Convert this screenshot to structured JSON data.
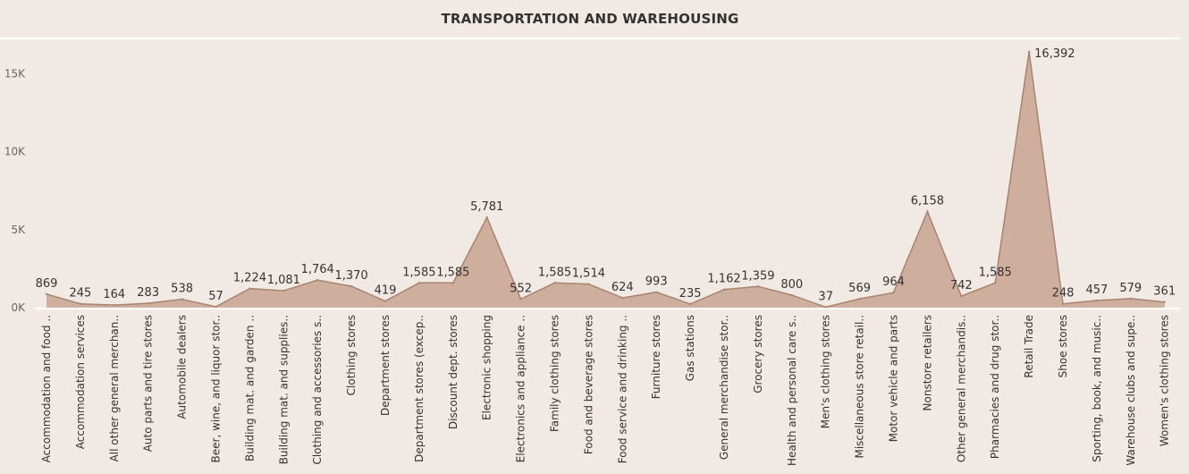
{
  "chart_data": {
    "type": "area",
    "title": "TRANSPORTATION AND WAREHOUSING",
    "categories": [
      "Accommodation and food ..",
      "Accommodation services",
      "All other general merchan..",
      "Auto parts and tire stores",
      "Automobile dealers",
      "Beer, wine, and liquor stor..",
      "Building mat. and garden ..",
      "Building mat. and supplies..",
      "Clothing and accessories s..",
      "Clothing stores",
      "Department stores",
      "Department stores (excep..",
      "Discount dept. stores",
      "Electronic shopping",
      "Electronics and appliance ..",
      "Family clothing stores",
      "Food and beverage stores",
      "Food service and drinking ..",
      "Furniture stores",
      "Gas stations",
      "General merchandise stor..",
      "Grocery stores",
      "Health and personal care s..",
      "Men's clothing stores",
      "Miscellaneous store retail..",
      "Motor vehicle and parts",
      "Nonstore retailers",
      "Other general merchandis..",
      "Pharmacies and drug stor..",
      "Retail Trade",
      "Shoe stores",
      "Sporting, book, and music..",
      "Warehouse clubs and supe..",
      "Women's clothing stores"
    ],
    "values": [
      869,
      245,
      164,
      283,
      538,
      57,
      1224,
      1081,
      1764,
      1370,
      419,
      1585,
      1585,
      5781,
      552,
      1585,
      1514,
      624,
      993,
      235,
      1162,
      1359,
      800,
      37,
      569,
      964,
      6158,
      742,
      1585,
      16392,
      248,
      457,
      579,
      361
    ],
    "value_labels": [
      "869",
      "245",
      "164",
      "283",
      "538",
      "57",
      "1,224",
      "1,081",
      "1,764",
      "1,370",
      "419",
      "1,585",
      "1,585",
      "5,781",
      "552",
      "1,585",
      "1,514",
      "624",
      "993",
      "235",
      "1,162",
      "1,359",
      "800",
      "37",
      "569",
      "964",
      "6,158",
      "742",
      "1,585",
      "16,392",
      "248",
      "457",
      "579",
      "361"
    ],
    "yticks": [
      0,
      5000,
      10000,
      15000
    ],
    "ytick_labels": [
      "0K",
      "5K",
      "10K",
      "15K"
    ],
    "ylim": [
      0,
      17500
    ],
    "xlabel": "",
    "ylabel": "",
    "grid": false,
    "colors": {
      "fill": "#c8a390",
      "stroke": "#a88470",
      "axis": "#ffffff",
      "text": "#333333",
      "tick_text": "#666666"
    }
  }
}
